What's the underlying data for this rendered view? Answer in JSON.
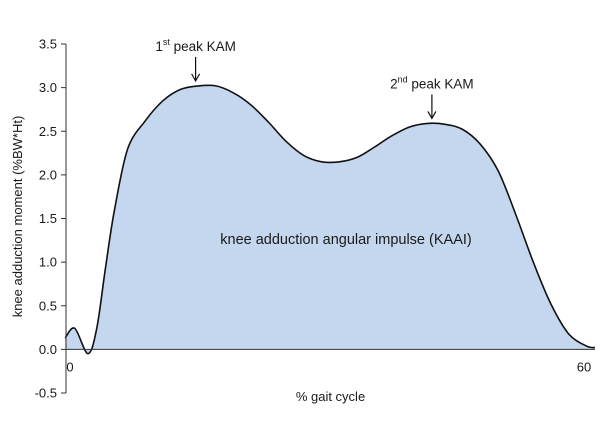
{
  "chart_data": {
    "type": "area",
    "title": "",
    "xlabel": "% gait cycle",
    "ylabel": "knee adduction moment  (%BW*Ht)",
    "xlim": [
      0,
      60
    ],
    "ylim": [
      -0.5,
      3.5
    ],
    "x_ticks": [
      "0",
      "60"
    ],
    "y_ticks": [
      "-0.5",
      "0.0",
      "0.5",
      "1.0",
      "1.5",
      "2.0",
      "2.5",
      "3.0",
      "3.5"
    ],
    "grid": false,
    "fill_color": "#c5d7ee",
    "line_color": "#111111",
    "series": [
      {
        "x": [
          -0.1,
          1.0,
          2.5,
          3.5,
          4.5,
          5.5,
          7,
          9,
          11,
          13,
          15,
          17,
          19,
          21,
          23,
          25,
          27,
          29,
          31,
          33,
          35,
          37,
          39,
          41,
          43,
          45,
          47,
          49,
          51,
          53,
          55,
          57,
          59,
          60
        ],
        "y": [
          0.13,
          0.24,
          -0.05,
          0.25,
          0.95,
          1.6,
          2.3,
          2.62,
          2.85,
          2.98,
          3.02,
          3.02,
          2.94,
          2.8,
          2.6,
          2.38,
          2.22,
          2.15,
          2.15,
          2.2,
          2.32,
          2.45,
          2.55,
          2.59,
          2.58,
          2.52,
          2.35,
          2.05,
          1.55,
          1.0,
          0.52,
          0.18,
          0.04,
          0.02
        ]
      }
    ],
    "annotations": [
      {
        "sup_base": "1",
        "sup": "st",
        "text": " peak KAM",
        "x": 14.7,
        "y": 3.02
      },
      {
        "sup_base": "2",
        "sup": "nd",
        "text": " peak KAM",
        "x": 41.5,
        "y": 2.59
      }
    ],
    "area_label": "knee adduction angular impulse (KAAI)"
  }
}
